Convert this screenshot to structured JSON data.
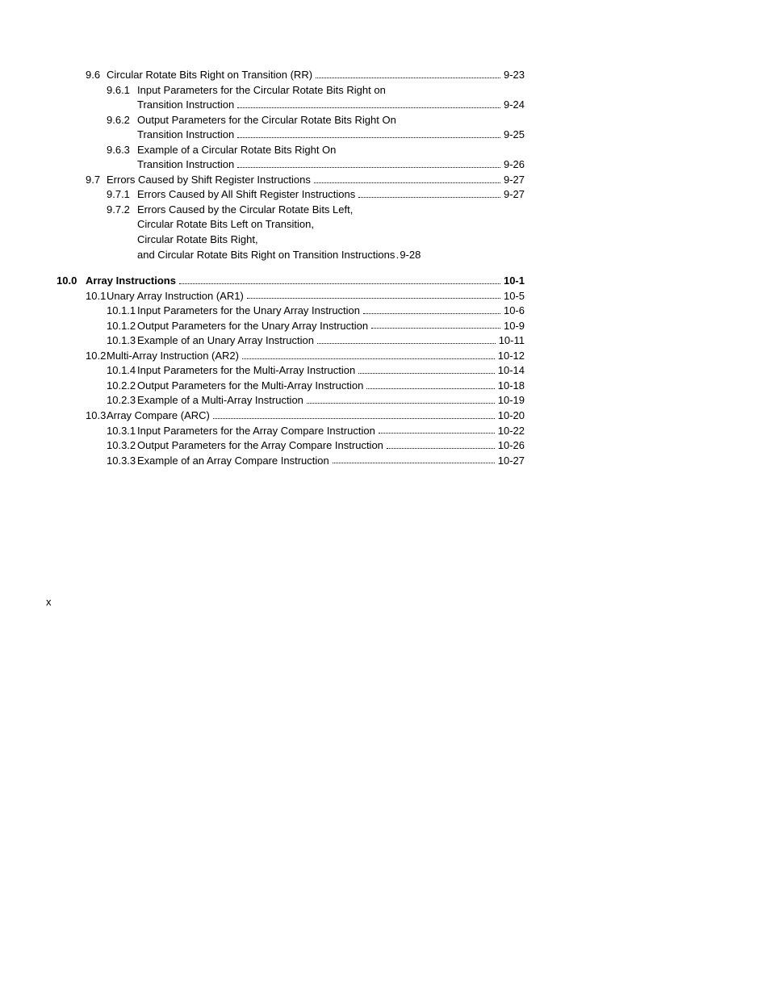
{
  "page_number_marker": "x",
  "toc": [
    {
      "id": "e1",
      "level": 1,
      "num": "9.6",
      "title": "Circular Rotate Bits Right on Transition (RR)",
      "page": "9-23"
    },
    {
      "id": "e2a",
      "level": 2,
      "num": "9.6.1",
      "title": "Input Parameters for the Circular Rotate Bits Right on",
      "nobreak": true
    },
    {
      "id": "e2b",
      "level": "cont",
      "title": "Transition Instruction",
      "page": "9-24"
    },
    {
      "id": "e3a",
      "level": 2,
      "num": "9.6.2",
      "title": "Output Parameters for the Circular Rotate Bits Right On",
      "nobreak": true
    },
    {
      "id": "e3b",
      "level": "cont",
      "title": "Transition Instruction",
      "page": "9-25"
    },
    {
      "id": "e4a",
      "level": 2,
      "num": "9.6.3",
      "title": "Example of a Circular Rotate Bits Right On",
      "nobreak": true
    },
    {
      "id": "e4b",
      "level": "cont",
      "title": "Transition Instruction",
      "page": "9-26"
    },
    {
      "id": "e5",
      "level": 1,
      "num": "9.7",
      "title": "Errors Caused by Shift Register Instructions",
      "page": "9-27"
    },
    {
      "id": "e6",
      "level": 2,
      "num": "9.7.1",
      "title": "Errors Caused by All Shift Register Instructions",
      "page": "9-27"
    },
    {
      "id": "e7a",
      "level": 2,
      "num": "9.7.2",
      "title": "Errors Caused by the Circular Rotate Bits Left,",
      "nobreak": true
    },
    {
      "id": "e7b",
      "level": "cont",
      "title": "Circular Rotate Bits Left on Transition,",
      "nobreak": true
    },
    {
      "id": "e7c",
      "level": "cont",
      "title": "Circular Rotate Bits Right,",
      "nobreak": true
    },
    {
      "id": "e7d",
      "level": "cont",
      "title": "and Circular Rotate Bits Right on Transition Instructions",
      "dotsep": true,
      "page": "9-28"
    },
    {
      "id": "gap1",
      "gap": "section"
    },
    {
      "id": "e8",
      "level": 0,
      "num": "10.0",
      "title": "Array Instructions",
      "page": "10-1"
    },
    {
      "id": "e9",
      "level": 1,
      "num": "10.1",
      "title": "Unary Array Instruction (AR1)",
      "page": "10-5"
    },
    {
      "id": "e10",
      "level": 2,
      "num": "10.1.1",
      "title": "Input Parameters for the Unary Array Instruction",
      "page": "10-6"
    },
    {
      "id": "e11",
      "level": 2,
      "num": "10.1.2",
      "title": "Output Parameters for the Unary Array Instruction",
      "page": "10-9"
    },
    {
      "id": "e12",
      "level": 2,
      "num": "10.1.3",
      "title": "Example of an Unary Array Instruction",
      "page": "10-11"
    },
    {
      "id": "e13",
      "level": 1,
      "num": "10.2",
      "title": "Multi-Array Instruction (AR2)",
      "page": "10-12"
    },
    {
      "id": "e14",
      "level": 2,
      "num": "10.1.4",
      "title": "Input Parameters for the Multi-Array Instruction",
      "page": "10-14"
    },
    {
      "id": "e15",
      "level": 2,
      "num": "10.2.2",
      "title": "Output Parameters for the Multi-Array Instruction",
      "page": "10-18"
    },
    {
      "id": "e16",
      "level": 2,
      "num": "10.2.3",
      "title": "Example of a Multi-Array Instruction",
      "page": "10-19"
    },
    {
      "id": "e17",
      "level": 1,
      "num": "10.3",
      "title": "Array Compare (ARC)",
      "page": "10-20"
    },
    {
      "id": "e18",
      "level": 2,
      "num": "10.3.1",
      "title": "Input Parameters for the Array Compare Instruction",
      "page": "10-22"
    },
    {
      "id": "e19",
      "level": 2,
      "num": "10.3.2",
      "title": "Output Parameters for the Array Compare Instruction",
      "page": "10-26"
    },
    {
      "id": "e20",
      "level": 2,
      "num": "10.3.3",
      "title": "Example of an Array Compare Instruction",
      "page": "10-27"
    }
  ]
}
